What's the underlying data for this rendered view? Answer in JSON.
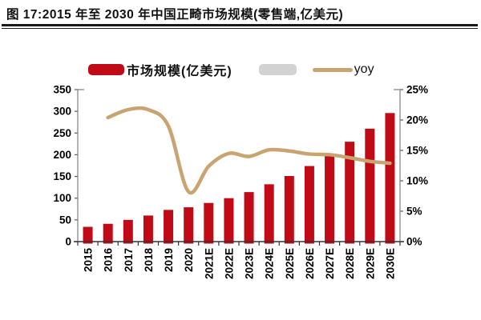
{
  "figure": {
    "title": "图 17:2015 年至 2030 年中国正畸市场规模(零售端,亿美元)"
  },
  "legend": {
    "position": "top",
    "items": [
      {
        "label": "市场规模(亿美元)",
        "swatch": "bar",
        "color": "#C00A15"
      },
      {
        "label": "",
        "swatch": "bar",
        "color": "#D2D2D2"
      },
      {
        "label": "yoy",
        "swatch": "line",
        "color": "#C9A470"
      }
    ]
  },
  "chart_data": {
    "type": "bar",
    "subtype": "bar+line combo, dual axis",
    "title": "图 17:2015 年至 2030 年中国正畸市场规模(零售端,亿美元)",
    "grid": false,
    "legend_position": "top",
    "categories": [
      "2015",
      "2016",
      "2017",
      "2018",
      "2019",
      "2020",
      "2021E",
      "2022E",
      "2023E",
      "2024E",
      "2025E",
      "2026E",
      "2027E",
      "2028E",
      "2029E",
      "2030E"
    ],
    "series": [
      {
        "name": "市场规模(亿美元)",
        "type": "bar",
        "axis": "left",
        "color": "#C00A15",
        "values": [
          34,
          41,
          50,
          60,
          73,
          79,
          89,
          100,
          114,
          132,
          151,
          174,
          200,
          230,
          260,
          296
        ]
      },
      {
        "name": "yoy",
        "type": "line",
        "axis": "right",
        "color": "#C9A470",
        "unit": "%",
        "values": [
          null,
          20.4,
          21.7,
          21.7,
          19.0,
          8.2,
          12.4,
          14.5,
          14.0,
          15.1,
          14.9,
          14.4,
          14.3,
          13.8,
          13.2,
          12.9
        ]
      }
    ],
    "left_axis": {
      "min": 0,
      "max": 350,
      "step": 50,
      "ticks": [
        "0",
        "50",
        "100",
        "150",
        "200",
        "250",
        "300",
        "350"
      ]
    },
    "right_axis": {
      "min": 0,
      "max": 25,
      "step": 5,
      "ticks": [
        "0%",
        "5%",
        "10%",
        "15%",
        "20%",
        "25%"
      ]
    }
  }
}
